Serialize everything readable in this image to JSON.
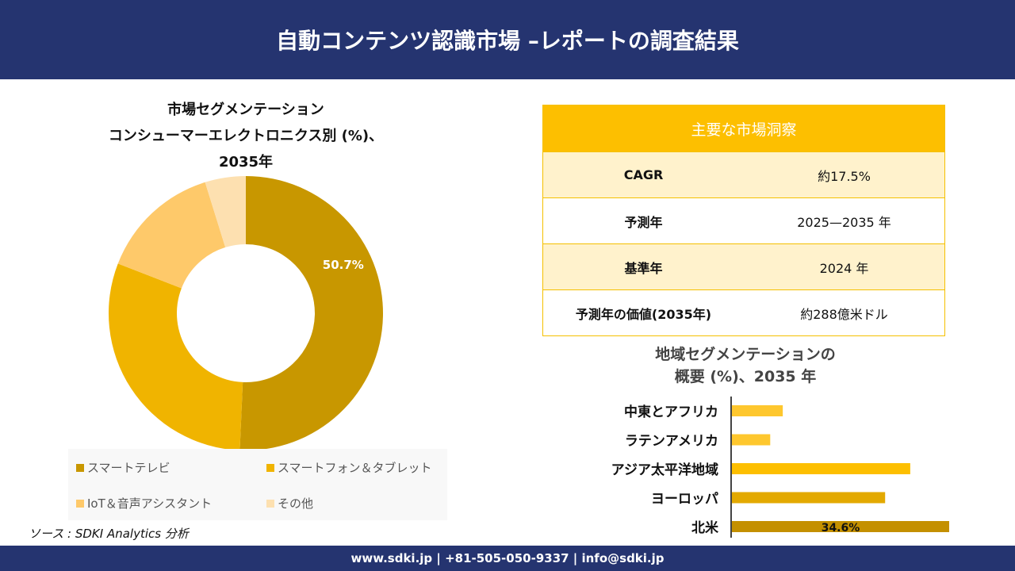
{
  "header": {
    "title": "自動コンテンツ認識市場 –レポートの調査結果"
  },
  "footer": {
    "contact": "www.sdki.jp | +81-505-050-9337 | info@sdki.jp"
  },
  "source": "ソース : SDKI Analytics 分析",
  "insights": {
    "title": "主要な市場洞察",
    "rows": [
      {
        "label": "CAGR",
        "value": "約17.5%"
      },
      {
        "label": "予測年",
        "value": "2025—2035 年"
      },
      {
        "label": "基準年",
        "value": "2024 年"
      },
      {
        "label": "予測年の価値(2035年)",
        "value": "約288億米ドル"
      }
    ]
  },
  "chart_data": [
    {
      "type": "pie",
      "donut": true,
      "title_lines": [
        "市場セグメンテーション",
        "コンシューマーエレクトロニクス別  (%)、",
        "2035年"
      ],
      "categories": [
        "スマートテレビ",
        "スマートフォン＆タブレット",
        "IoT＆音声アシスタント",
        "その他"
      ],
      "values": [
        50.7,
        30.2,
        14.3,
        4.8
      ],
      "data_labels": [
        "50.7%",
        "",
        "",
        ""
      ],
      "colors": [
        "#c89700",
        "#f0b400",
        "#fec96a",
        "#fde0b0"
      ],
      "legend": "bottom"
    },
    {
      "type": "bar",
      "orientation": "horizontal",
      "title_lines": [
        "地域セグメンテーションの",
        "概要 (%)、2035 年"
      ],
      "categories": [
        "中東とアフリカ",
        "ラテンアメリカ",
        "アジア太平洋地域",
        "ヨーロッパ",
        "北米"
      ],
      "values": [
        8.1,
        6.1,
        28.4,
        24.4,
        34.6
      ],
      "data_labels": [
        "",
        "",
        "",
        "",
        "34.6%"
      ],
      "colors": [
        "#fec72e",
        "#fec72e",
        "#fdbf00",
        "#e3a900",
        "#c49000"
      ]
    }
  ]
}
